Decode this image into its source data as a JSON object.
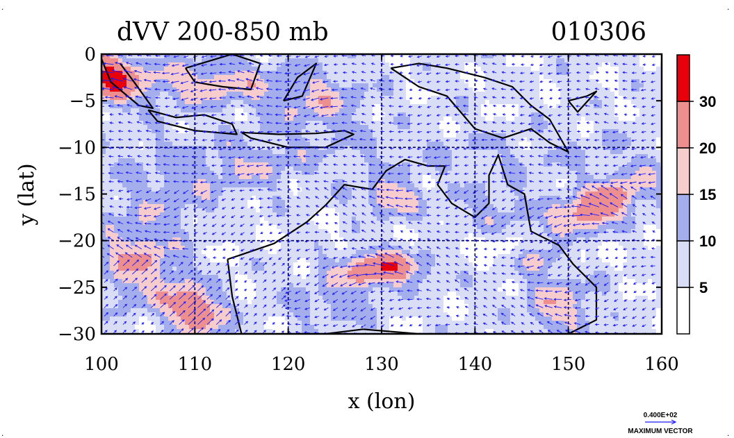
{
  "chart_data": {
    "type": "heatmap",
    "title": "dVV 200-850 mb",
    "date_label": "010306",
    "xlabel": "x (lon)",
    "ylabel": "y (lat)",
    "xlim": [
      100,
      160
    ],
    "ylim": [
      -30,
      0
    ],
    "x_ticks": [
      100,
      110,
      120,
      130,
      140,
      150,
      160
    ],
    "y_ticks": [
      0,
      -5,
      -10,
      -15,
      -20,
      -25,
      -30
    ],
    "grid": "dashed at 10 deg lon / 10 deg lat",
    "colorbar": {
      "levels": [
        0,
        5,
        10,
        15,
        20,
        30,
        35
      ],
      "labels": [
        "5",
        "10",
        "15",
        "20",
        "30"
      ],
      "colors": [
        "#ffffff",
        "#d9ddf5",
        "#a4aeec",
        "#f6cccc",
        "#ee8f8f",
        "#e8000a"
      ]
    },
    "maxima": [
      {
        "lon": 110,
        "lat": -27.5,
        "value": 32
      },
      {
        "lon": 130,
        "lat": -23,
        "value": 31
      },
      {
        "lon": 153,
        "lat": -16.5,
        "value": 30
      },
      {
        "lon": 131,
        "lat": -15.5,
        "value": 26
      },
      {
        "lon": 100.5,
        "lat": -2.5,
        "value": 33
      },
      {
        "lon": 147,
        "lat": -22,
        "value": 22
      }
    ],
    "vector_legend": {
      "value": "0.400E+02",
      "label": "MAXIMUM VECTOR"
    }
  },
  "colors": {
    "vector": "#1a1aff",
    "coast": "#000000",
    "grid": "#000066"
  }
}
